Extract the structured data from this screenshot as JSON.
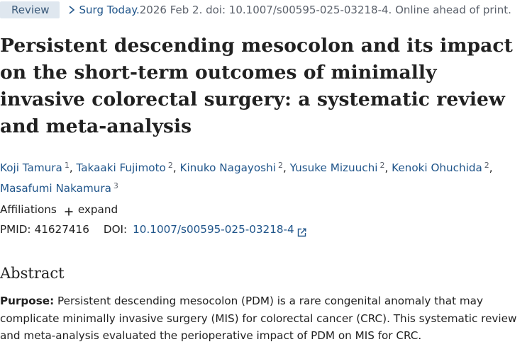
{
  "header": {
    "badge_label": "Review",
    "journal": "Surg Today.",
    "citation_rest": " 2026 Feb 2. doi: 10.1007/s00595-025-03218-4. Online ahead of print."
  },
  "article": {
    "title": "Persistent descending mesocolon and its impact on the short-term outcomes of minimally invasive colorectal surgery: a systematic review and meta-analysis"
  },
  "authors": [
    {
      "name": "Koji Tamura",
      "affiliation": "1"
    },
    {
      "name": "Takaaki Fujimoto",
      "affiliation": "2"
    },
    {
      "name": "Kinuko Nagayoshi",
      "affiliation": "2"
    },
    {
      "name": "Yusuke Mizuuchi",
      "affiliation": "2"
    },
    {
      "name": "Kenoki Ohuchida",
      "affiliation": "2"
    },
    {
      "name": "Masafumi Nakamura",
      "affiliation": "3"
    }
  ],
  "affiliations": {
    "label": "Affiliations",
    "expand_label": "expand"
  },
  "identifiers": {
    "pmid_label": "PMID:",
    "pmid": "41627416",
    "doi_label": "DOI:",
    "doi": "10.1007/s00595-025-03218-4"
  },
  "abstract": {
    "heading": "Abstract",
    "purpose_label": "Purpose:",
    "purpose_text": " Persistent descending mesocolon (PDM) is a rare congenital anomaly that may complicate minimally invasive surgery (MIS) for colorectal cancer (CRC). This systematic review and meta-analysis evaluated the perioperative impact of PDM on MIS for CRC."
  },
  "colors": {
    "link": "#20558a",
    "badge_bg": "#dfe7ef",
    "text": "#212121",
    "muted": "#5b616b"
  }
}
